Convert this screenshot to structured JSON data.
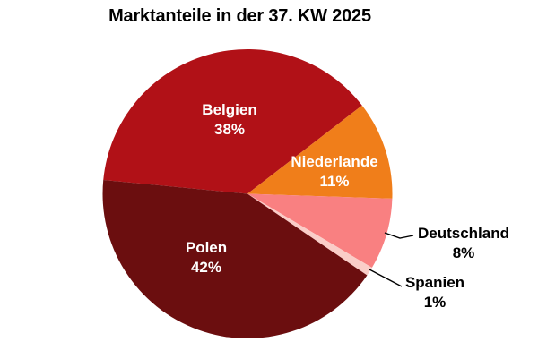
{
  "chart_data": {
    "type": "pie",
    "title": "Marktanteile in der 37. KW 2025",
    "unit": "%",
    "start_angle_deg": 174.5,
    "direction": "clockwise",
    "legend": "none",
    "slices": [
      {
        "label": "Belgien",
        "value": 38,
        "pct_text": "38%",
        "color": "#b11117",
        "label_color": "#ffffff",
        "label_placement": "inside"
      },
      {
        "label": "Niederlande",
        "value": 11,
        "pct_text": "11%",
        "color": "#f07e1a",
        "label_color": "#ffffff",
        "label_placement": "inside"
      },
      {
        "label": "Deutschland",
        "value": 8,
        "pct_text": "8%",
        "color": "#f98081",
        "label_color": "#000000",
        "label_placement": "outside"
      },
      {
        "label": "Spanien",
        "value": 1,
        "pct_text": "1%",
        "color": "#facdc8",
        "label_color": "#000000",
        "label_placement": "outside"
      },
      {
        "label": "Polen",
        "value": 42,
        "pct_text": "42%",
        "color": "#6b0e0f",
        "label_color": "#ffffff",
        "label_placement": "inside"
      }
    ],
    "leader_line_color": "#000000"
  }
}
